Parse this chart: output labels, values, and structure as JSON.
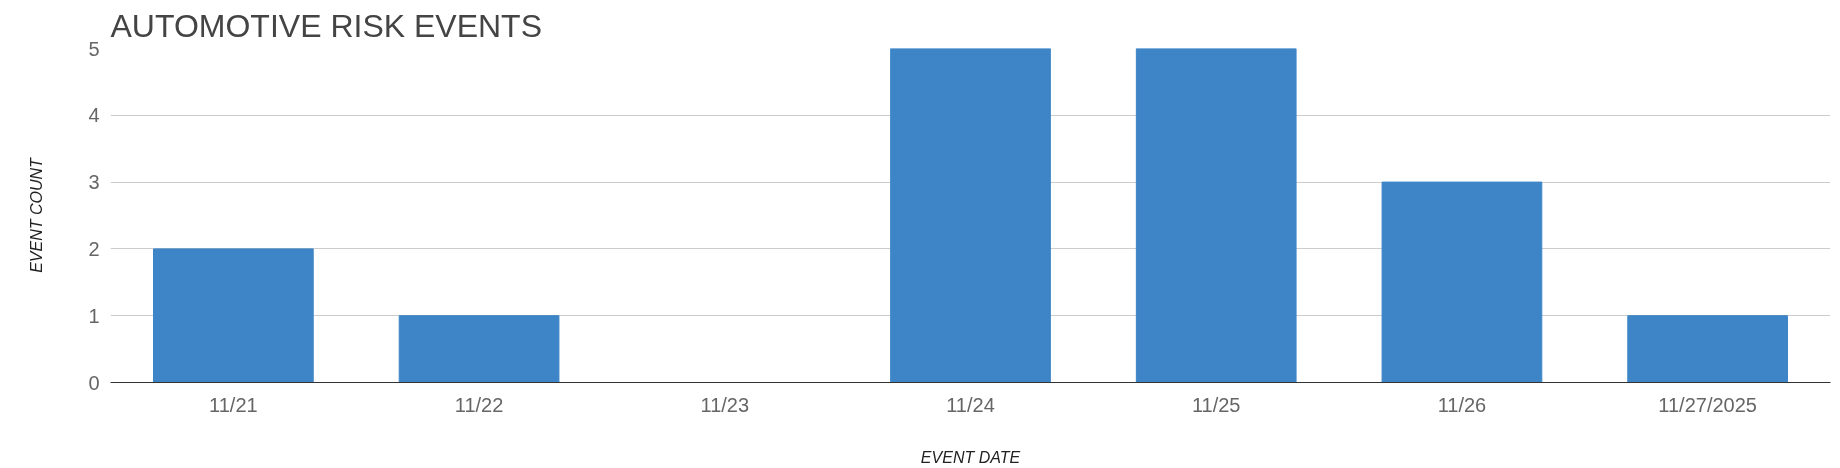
{
  "chart_data": {
    "type": "bar",
    "title": "AUTOMOTIVE RISK EVENTS",
    "xlabel": "EVENT DATE",
    "ylabel": "EVENT COUNT",
    "categories": [
      "11/21",
      "11/22",
      "11/23",
      "11/24",
      "11/25",
      "11/26",
      "11/27/2025"
    ],
    "values": [
      2,
      1,
      0,
      5,
      5,
      3,
      1
    ],
    "color": "#3d85c6",
    "ylim": [
      0,
      5
    ],
    "yticks": [
      0,
      1,
      2,
      3,
      4,
      5
    ],
    "grid": "y"
  }
}
